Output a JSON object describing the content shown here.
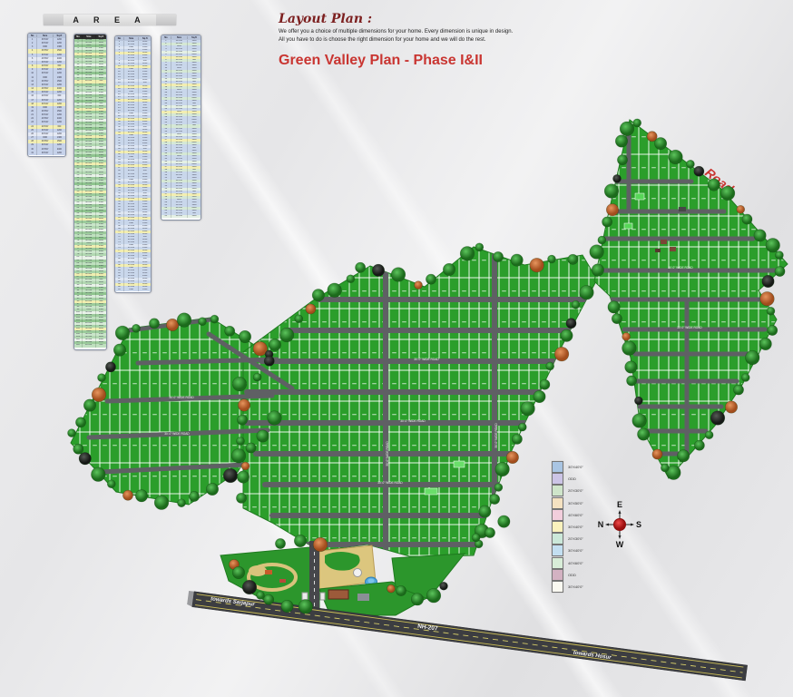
{
  "header": {
    "area_title": "A R E A"
  },
  "title": {
    "script_title": "Layout Plan :",
    "desc_line1": "We offer you a choice of multiple dimensions for your home. Every dimension is unique in design.",
    "desc_line2": "All you have to do is choose the right dimension for your home and we will do the rest.",
    "main_title": "Green Valley Plan - Phase I&II"
  },
  "table_row_cycle": {
    "sizes": [
      "30'X40'",
      "30'X40'",
      "ODD",
      "30'X50'",
      "30'X40'",
      "40'X60'",
      "30'X40'",
      "20'X30'"
    ],
    "areas": [
      "1200",
      "1200",
      "1386",
      "1500",
      "1200",
      "2400",
      "1200",
      "600"
    ]
  },
  "tables": [
    {
      "columns": [
        "No",
        "Size",
        "Sq.ft"
      ],
      "rows": 31,
      "palette": [
        "#c6d2ea",
        "#c6d2ea",
        "#c6d2ea",
        "#f2eeb2",
        "#c6d2ea",
        "#e4e9f4",
        "#c6d2ea",
        "#f2eeb2",
        "#c6d2ea",
        "#c6d2ea"
      ]
    },
    {
      "columns": [
        "No",
        "Size",
        "Sq.ft"
      ],
      "rows": 112,
      "palette": [
        "#9ccb9c",
        "#bfe0bf",
        "#8fc48f",
        "#d8ecd8",
        "#a8d4a8",
        "#f0eeb0",
        "#9ccb9c",
        "#c9e5c9",
        "#b2d8b2",
        "#e8f2e8"
      ]
    },
    {
      "columns": [
        "No",
        "Size",
        "Sq.ft"
      ],
      "rows": 91,
      "palette": [
        "#c9d7eb",
        "#c9d7eb",
        "#dde6f3",
        "#c9d7eb",
        "#f2eeb2",
        "#c9d7eb",
        "#c9d7eb",
        "#dde6f3",
        "#c9d7eb",
        "#f2eeb2",
        "#c9d7eb",
        "#c9d7eb"
      ]
    },
    {
      "columns": [
        "No",
        "Size",
        "Sq.ft"
      ],
      "rows": 65,
      "palette": [
        "#c9d7eb",
        "#d5e8d5",
        "#c9d7eb",
        "#c9d7eb",
        "#e4f0e4",
        "#c9d7eb",
        "#f2eeb2",
        "#d5e8d5",
        "#c9d7eb",
        "#c9d7eb"
      ]
    }
  ],
  "map": {
    "road_label": "30'-0\" WIDE ROAD",
    "outer_road_label": "Road",
    "highway": {
      "name": "NH-207",
      "left": "towards Sarjapur",
      "right": "towards Hosur"
    }
  },
  "legend": {
    "items": [
      {
        "label": "30'X40'0\"",
        "color": "#a9c5e3"
      },
      {
        "label": "ODD",
        "color": "#ccc4e6"
      },
      {
        "label": "20'X30'0\"",
        "color": "#cfe5ca"
      },
      {
        "label": "30'X50'0\"",
        "color": "#f5e2c1"
      },
      {
        "label": "40'X60'0\"",
        "color": "#f2cedc"
      },
      {
        "label": "30'X40'0\"",
        "color": "#faf2bd"
      },
      {
        "label": "20'X30'0\"",
        "color": "#cbe8d9"
      },
      {
        "label": "30'X40'0\"",
        "color": "#c3dff1"
      },
      {
        "label": "40'X60'0\"",
        "color": "#d8edd8"
      },
      {
        "label": "ODD",
        "color": "#d3b2c2"
      },
      {
        "label": "30'X40'0\"",
        "color": "#faf9f1"
      }
    ]
  },
  "compass": {
    "top": "E",
    "right": "S",
    "bottom": "W",
    "left": "N"
  },
  "colors": {
    "plot_green": "#2b9e2b",
    "road_gray": "#5f6064",
    "accent_red": "#c93531"
  }
}
